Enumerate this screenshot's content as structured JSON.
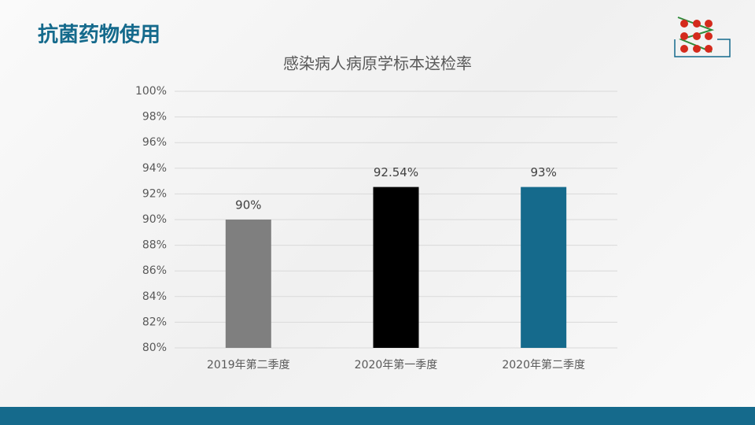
{
  "header": {
    "title": "抗菌药物使用"
  },
  "chart_data": {
    "type": "bar",
    "title": "感染病人病原学标本送检率",
    "categories": [
      "2019年第二季度",
      "2020年第一季度",
      "2020年第二季度"
    ],
    "values": [
      90,
      92.54,
      92.54
    ],
    "value_labels": [
      "90%",
      "92.54%",
      "93%"
    ],
    "colors": [
      "#7f7f7f",
      "#000000",
      "#156a8c"
    ],
    "ylim": [
      80,
      100
    ],
    "yticks": [
      {
        "value": 80,
        "label": "80%"
      },
      {
        "value": 82,
        "label": "82%"
      },
      {
        "value": 84,
        "label": "84%"
      },
      {
        "value": 86,
        "label": "86%"
      },
      {
        "value": 88,
        "label": "88%"
      },
      {
        "value": 90,
        "label": "90%"
      },
      {
        "value": 92,
        "label": "92%"
      },
      {
        "value": 94,
        "label": "94%"
      },
      {
        "value": 96,
        "label": "96%"
      },
      {
        "value": 98,
        "label": "98%"
      },
      {
        "value": 100,
        "label": "100%"
      }
    ],
    "grid": true
  }
}
